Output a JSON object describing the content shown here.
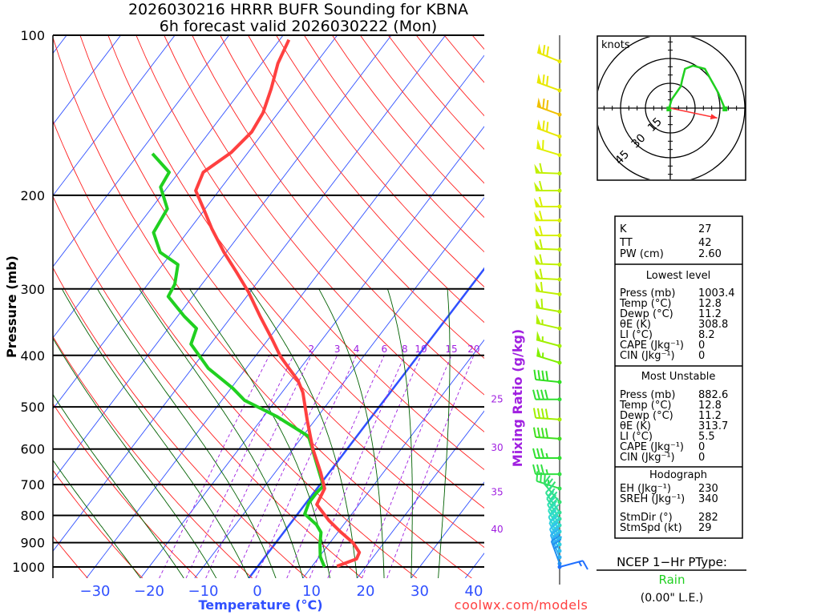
{
  "title": {
    "line1": "2026030216 HRRR BUFR Sounding for KBNA",
    "line2": "6h forecast valid 2026030222 (Mon)"
  },
  "footer": {
    "credit": "coolwx.com/models"
  },
  "colors": {
    "temperature": "#ff4040",
    "dewpoint": "#20d020",
    "isotherm": "#3050ff",
    "dry_adiabat": "#ff2020",
    "moist_adiabat": "#006000",
    "mixing_ratio": "#a020e0",
    "hodograph": "#20d020",
    "storm_motion": "#ff3030",
    "ptype": "#20d020",
    "credit": "#ff4040"
  },
  "chart_data": {
    "type": "skew-t",
    "title": "2026030216 HRRR BUFR Sounding for KBNA / 6h forecast valid 2026030222 (Mon)",
    "xlabel": "Temperature (°C)",
    "ylabel": "Pressure (mb)",
    "y2label": "Mixing Ratio (g/kg)",
    "pressure_ticks": [
      "100",
      "200",
      "300",
      "400",
      "500",
      "600",
      "700",
      "800",
      "900",
      "1000"
    ],
    "temperature_ticks": [
      "−30",
      "−20",
      "−10",
      "0",
      "10",
      "20",
      "30",
      "40"
    ],
    "temperature_tick_values": [
      -30,
      -20,
      -10,
      0,
      10,
      20,
      30,
      40
    ],
    "mixing_ratio_labels": [
      {
        "w": "2",
        "value": 2
      },
      {
        "w": "3",
        "value": 3
      },
      {
        "w": "4",
        "value": 4
      },
      {
        "w": "6",
        "value": 6
      },
      {
        "w": "8",
        "value": 8
      },
      {
        "w": "10",
        "value": 10
      },
      {
        "w": "15",
        "value": 15
      },
      {
        "w": "20",
        "value": 20
      }
    ],
    "right_labels": [
      {
        "text": "25",
        "p": 484
      },
      {
        "text": "30",
        "p": 597
      },
      {
        "text": "35",
        "p": 723
      },
      {
        "text": "40",
        "p": 850
      }
    ],
    "mixing_ratio_lines": [
      1,
      1.5,
      2,
      3,
      4,
      6,
      8,
      10,
      15,
      20
    ],
    "ylim_mb": [
      1050,
      100
    ],
    "temperature": [
      [
        997,
        14.6
      ],
      [
        966,
        17.2
      ],
      [
        939,
        16.8
      ],
      [
        901,
        14.3
      ],
      [
        861,
        10.6
      ],
      [
        818,
        6.7
      ],
      [
        763,
        2.2
      ],
      [
        712,
        1.4
      ],
      [
        664,
        -1.6
      ],
      [
        599,
        -6.4
      ],
      [
        530,
        -11.4
      ],
      [
        470,
        -16.1
      ],
      [
        446,
        -18.7
      ],
      [
        423,
        -22.1
      ],
      [
        402,
        -25.3
      ],
      [
        375,
        -29.0
      ],
      [
        338,
        -34.7
      ],
      [
        304,
        -40.3
      ],
      [
        279,
        -45.3
      ],
      [
        256,
        -50.4
      ],
      [
        231,
        -56.0
      ],
      [
        212,
        -60.3
      ],
      [
        196,
        -64.3
      ],
      [
        181,
        -65.5
      ],
      [
        166,
        -63.1
      ],
      [
        152,
        -62.2
      ],
      [
        140,
        -62.8
      ],
      [
        126,
        -64.7
      ],
      [
        113,
        -67.0
      ],
      [
        102,
        -68.3
      ]
    ],
    "dewpoint": [
      [
        1000,
        12.4
      ],
      [
        957,
        10.2
      ],
      [
        904,
        8.3
      ],
      [
        861,
        6.9
      ],
      [
        833,
        5.0
      ],
      [
        795,
        1.3
      ],
      [
        758,
        0.5
      ],
      [
        725,
        0.5
      ],
      [
        704,
        0.8
      ],
      [
        568,
        -8.9
      ],
      [
        521,
        -17.6
      ],
      [
        486,
        -25.8
      ],
      [
        461,
        -29.7
      ],
      [
        423,
        -37.0
      ],
      [
        381,
        -43.6
      ],
      [
        356,
        -44.8
      ],
      [
        338,
        -48.7
      ],
      [
        310,
        -54.5
      ],
      [
        294,
        -55.0
      ],
      [
        270,
        -57.2
      ],
      [
        256,
        -62.2
      ],
      [
        235,
        -66.2
      ],
      [
        212,
        -67.0
      ],
      [
        193,
        -71.3
      ],
      [
        181,
        -71.8
      ],
      [
        167,
        -77.5
      ]
    ],
    "wind_barbs": [
      {
        "p": 112,
        "dir": 292,
        "spd": 70,
        "color": "#e8e800"
      },
      {
        "p": 127,
        "dir": 290,
        "spd": 70,
        "color": "#e8e800"
      },
      {
        "p": 141,
        "dir": 290,
        "spd": 70,
        "color": "#f0c000"
      },
      {
        "p": 155,
        "dir": 290,
        "spd": 70,
        "color": "#e8e800"
      },
      {
        "p": 168,
        "dir": 287,
        "spd": 60,
        "color": "#e0f000"
      },
      {
        "p": 182,
        "dir": 272,
        "spd": 60,
        "color": "#c0f000"
      },
      {
        "p": 196,
        "dir": 270,
        "spd": 60,
        "color": "#c0f000"
      },
      {
        "p": 210,
        "dir": 270,
        "spd": 60,
        "color": "#d8f000"
      },
      {
        "p": 223,
        "dir": 270,
        "spd": 60,
        "color": "#d8f000"
      },
      {
        "p": 238,
        "dir": 270,
        "spd": 60,
        "color": "#d8f000"
      },
      {
        "p": 253,
        "dir": 272,
        "spd": 60,
        "color": "#c0f000"
      },
      {
        "p": 270,
        "dir": 272,
        "spd": 60,
        "color": "#c0f000"
      },
      {
        "p": 288,
        "dir": 273,
        "spd": 60,
        "color": "#c0f000"
      },
      {
        "p": 307,
        "dir": 278,
        "spd": 60,
        "color": "#c0f000"
      },
      {
        "p": 331,
        "dir": 280,
        "spd": 60,
        "color": "#b0f000"
      },
      {
        "p": 356,
        "dir": 283,
        "spd": 55,
        "color": "#b0f000"
      },
      {
        "p": 384,
        "dir": 285,
        "spd": 55,
        "color": "#a0f000"
      },
      {
        "p": 413,
        "dir": 287,
        "spd": 55,
        "color": "#80f000"
      },
      {
        "p": 449,
        "dir": 276,
        "spd": 40,
        "color": "#30e020"
      },
      {
        "p": 484,
        "dir": 270,
        "spd": 40,
        "color": "#30e030"
      },
      {
        "p": 528,
        "dir": 274,
        "spd": 40,
        "color": "#a0f000"
      },
      {
        "p": 574,
        "dir": 274,
        "spd": 40,
        "color": "#40e020"
      },
      {
        "p": 624,
        "dir": 270,
        "spd": 35,
        "color": "#30e030"
      },
      {
        "p": 669,
        "dir": 270,
        "spd": 35,
        "color": "#30e040"
      },
      {
        "p": 712,
        "dir": 288,
        "spd": 35,
        "color": "#30e050"
      },
      {
        "p": 755,
        "dir": 320,
        "spd": 30,
        "color": "#30e070"
      },
      {
        "p": 790,
        "dir": 325,
        "spd": 30,
        "color": "#30e090"
      },
      {
        "p": 812,
        "dir": 328,
        "spd": 30,
        "color": "#30e0a0"
      },
      {
        "p": 835,
        "dir": 330,
        "spd": 30,
        "color": "#30e0b0"
      },
      {
        "p": 858,
        "dir": 332,
        "spd": 30,
        "color": "#30e0c0"
      },
      {
        "p": 883,
        "dir": 333,
        "spd": 30,
        "color": "#30d8d0"
      },
      {
        "p": 907,
        "dir": 335,
        "spd": 30,
        "color": "#30d0e0"
      },
      {
        "p": 933,
        "dir": 336,
        "spd": 30,
        "color": "#30c0f0"
      },
      {
        "p": 959,
        "dir": 338,
        "spd": 30,
        "color": "#30b0f0"
      },
      {
        "p": 986,
        "dir": 340,
        "spd": 25,
        "color": "#2090f0"
      },
      {
        "p": 1000,
        "dir": 75,
        "spd": 15,
        "color": "#2070ff"
      }
    ]
  },
  "hodograph": {
    "units_label": "knots",
    "ring_labels": [
      "15",
      "30",
      "45"
    ],
    "ring_values": [
      15,
      30,
      45
    ],
    "trace_uv_kt": [
      [
        -0.8,
        -0.5
      ],
      [
        0.8,
        5.2
      ],
      [
        6.4,
        13.2
      ],
      [
        7.2,
        17.2
      ],
      [
        8.9,
        23.7
      ],
      [
        13.7,
        25.6
      ],
      [
        20.9,
        23.7
      ],
      [
        29.0,
        9.2
      ],
      [
        33.0,
        -0.5
      ]
    ],
    "storm_motion_uv_kt": [
      28.4,
      -6.0
    ]
  },
  "stats": {
    "indices": [
      {
        "label": "K",
        "value": "27"
      },
      {
        "label": "TT",
        "value": "42"
      },
      {
        "label": "PW (cm)",
        "value": "2.60"
      }
    ],
    "lowest_level": {
      "heading": "Lowest level",
      "rows": [
        {
          "label": "Press (mb)",
          "value": "1003.4"
        },
        {
          "label": "Temp (°C)",
          "value": "12.8"
        },
        {
          "label": "Dewp (°C)",
          "value": "11.2"
        },
        {
          "label": "θE (K)",
          "value": "308.8"
        },
        {
          "label": "LI (°C)",
          "value": "8.2"
        },
        {
          "label": "CAPE (Jkg⁻¹)",
          "value": "0"
        },
        {
          "label": "CIN (Jkg⁻¹)",
          "value": "0"
        }
      ]
    },
    "most_unstable": {
      "heading": "Most Unstable",
      "rows": [
        {
          "label": "Press (mb)",
          "value": "882.6"
        },
        {
          "label": "Temp (°C)",
          "value": "12.8"
        },
        {
          "label": "Dewp (°C)",
          "value": "11.2"
        },
        {
          "label": "θE (K)",
          "value": "313.7"
        },
        {
          "label": "LI (°C)",
          "value": "5.5"
        },
        {
          "label": "CAPE (Jkg⁻¹)",
          "value": "0"
        },
        {
          "label": "CIN (Jkg⁻¹)",
          "value": "0"
        }
      ]
    },
    "hodograph": {
      "heading": "Hodograph",
      "rows": [
        {
          "label": "EH (Jkg⁻¹)",
          "value": "230"
        },
        {
          "label": "SREH (Jkg⁻¹)",
          "value": "340"
        },
        {
          "label": "StmDir (°)",
          "value": "282"
        },
        {
          "label": "StmSpd (kt)",
          "value": "29"
        }
      ]
    }
  },
  "ptype": {
    "heading": "NCEP 1−Hr PType:",
    "value": "Rain",
    "liquid_equivalent": "(0.00\" L.E.)"
  }
}
